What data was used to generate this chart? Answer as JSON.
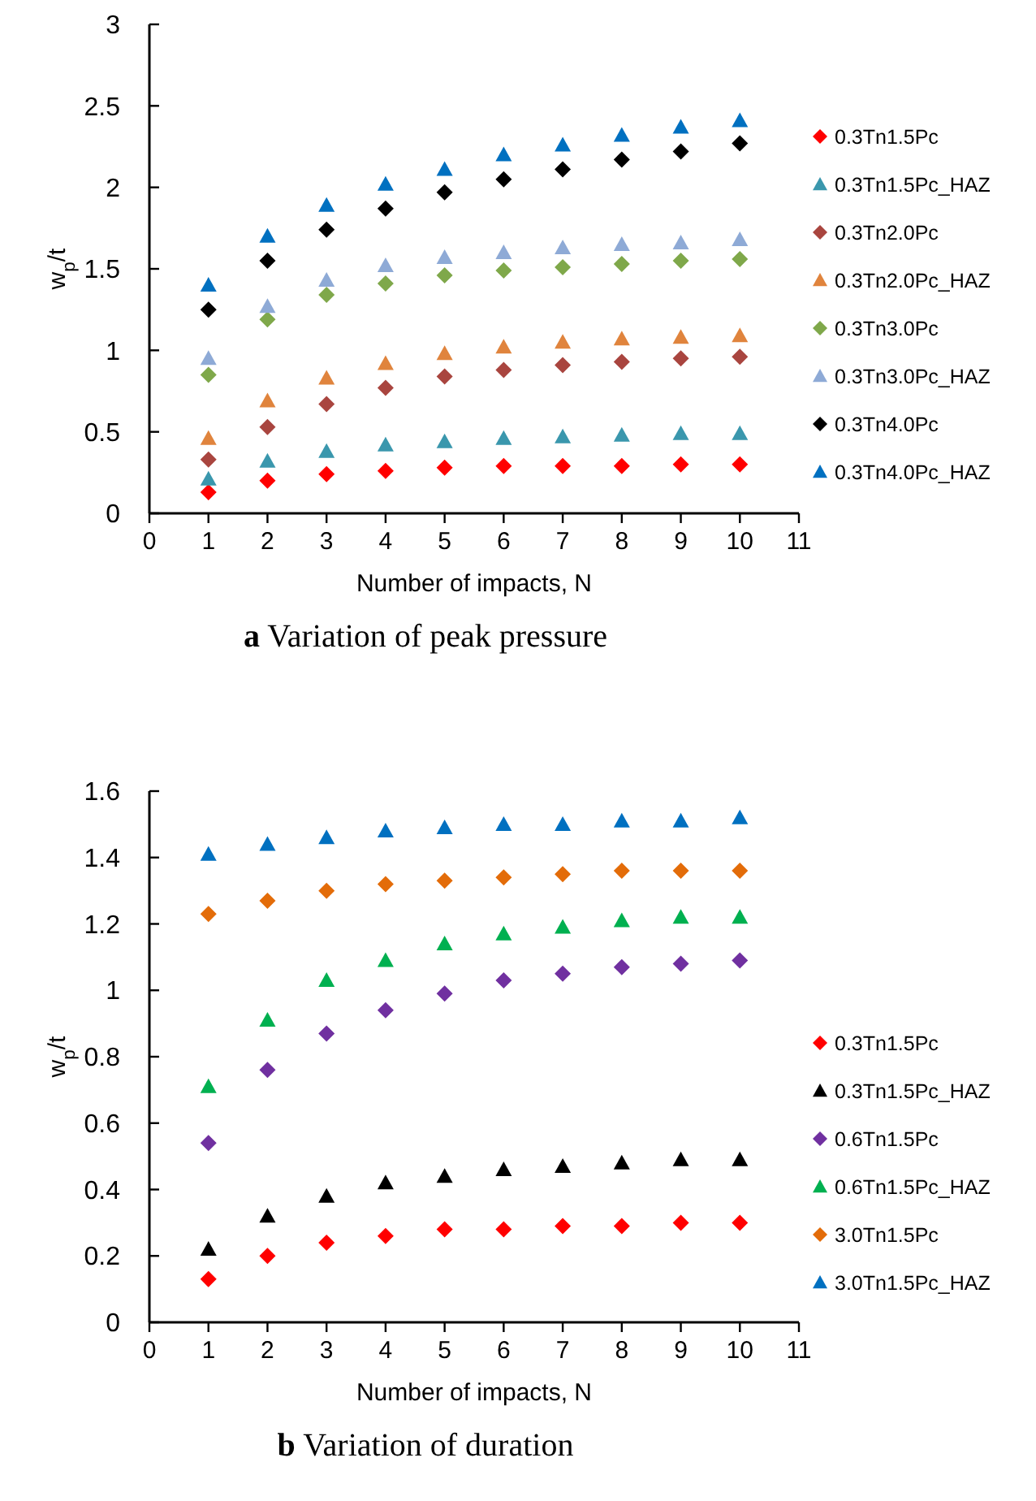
{
  "chart_data": [
    {
      "type": "scatter",
      "title": "a  Variation of peak pressure",
      "xlabel": "Number of impacts, N",
      "ylabel": "w$_{p}$/t",
      "x": [
        1,
        2,
        3,
        4,
        5,
        6,
        7,
        8,
        9,
        10
      ],
      "xlim": [
        0,
        11
      ],
      "xticks": [
        0,
        1,
        2,
        3,
        4,
        5,
        6,
        7,
        8,
        9,
        10,
        11
      ],
      "ylim": [
        0,
        3
      ],
      "yticks": [
        0,
        0.5,
        1,
        1.5,
        2,
        2.5,
        3
      ],
      "grid": false,
      "legend": "right",
      "series": [
        {
          "name": "0.3Tn1.5Pc",
          "color": "#ff0000",
          "marker": "diamond",
          "values": [
            0.13,
            0.2,
            0.24,
            0.26,
            0.28,
            0.29,
            0.29,
            0.29,
            0.3,
            0.3
          ]
        },
        {
          "name": "0.3Tn1.5Pc_HAZ",
          "color": "#3a97ad",
          "marker": "triangle",
          "values": [
            0.21,
            0.32,
            0.38,
            0.42,
            0.44,
            0.46,
            0.47,
            0.48,
            0.49,
            0.49
          ]
        },
        {
          "name": "0.3Tn2.0Pc",
          "color": "#a9453f",
          "marker": "diamond",
          "values": [
            0.33,
            0.53,
            0.67,
            0.77,
            0.84,
            0.88,
            0.91,
            0.93,
            0.95,
            0.96
          ]
        },
        {
          "name": "0.3Tn2.0Pc_HAZ",
          "color": "#e0843d",
          "marker": "triangle",
          "values": [
            0.46,
            0.69,
            0.83,
            0.92,
            0.98,
            1.02,
            1.05,
            1.07,
            1.08,
            1.09
          ]
        },
        {
          "name": "0.3Tn3.0Pc",
          "color": "#7fa84a",
          "marker": "diamond",
          "values": [
            0.85,
            1.19,
            1.34,
            1.41,
            1.46,
            1.49,
            1.51,
            1.53,
            1.55,
            1.56
          ]
        },
        {
          "name": "0.3Tn3.0Pc_HAZ",
          "color": "#8eaad6",
          "marker": "triangle",
          "values": [
            0.95,
            1.27,
            1.43,
            1.52,
            1.57,
            1.6,
            1.63,
            1.65,
            1.66,
            1.68
          ]
        },
        {
          "name": "0.3Tn4.0Pc",
          "color": "#000000",
          "marker": "diamond",
          "values": [
            1.25,
            1.55,
            1.74,
            1.87,
            1.97,
            2.05,
            2.11,
            2.17,
            2.22,
            2.27
          ]
        },
        {
          "name": "0.3Tn4.0Pc_HAZ",
          "color": "#0070c0",
          "marker": "triangle",
          "values": [
            1.4,
            1.7,
            1.89,
            2.02,
            2.11,
            2.2,
            2.26,
            2.32,
            2.37,
            2.41
          ]
        }
      ]
    },
    {
      "type": "scatter",
      "title": "b  Variation of duration",
      "xlabel": "Number of impacts, N",
      "ylabel": "w$_{p}$/t",
      "x": [
        1,
        2,
        3,
        4,
        5,
        6,
        7,
        8,
        9,
        10
      ],
      "xlim": [
        0,
        11
      ],
      "xticks": [
        0,
        1,
        2,
        3,
        4,
        5,
        6,
        7,
        8,
        9,
        10,
        11
      ],
      "ylim": [
        0,
        1.6
      ],
      "yticks": [
        0,
        0.2,
        0.4,
        0.6,
        0.8,
        1,
        1.2,
        1.4,
        1.6
      ],
      "grid": false,
      "legend": "right",
      "series": [
        {
          "name": "0.3Tn1.5Pc",
          "color": "#ff0000",
          "marker": "diamond",
          "values": [
            0.13,
            0.2,
            0.24,
            0.26,
            0.28,
            0.28,
            0.29,
            0.29,
            0.3,
            0.3
          ]
        },
        {
          "name": "0.3Tn1.5Pc_HAZ",
          "color": "#000000",
          "marker": "triangle",
          "values": [
            0.22,
            0.32,
            0.38,
            0.42,
            0.44,
            0.46,
            0.47,
            0.48,
            0.49,
            0.49
          ]
        },
        {
          "name": "0.6Tn1.5Pc",
          "color": "#7030a0",
          "marker": "diamond",
          "values": [
            0.54,
            0.76,
            0.87,
            0.94,
            0.99,
            1.03,
            1.05,
            1.07,
            1.08,
            1.09
          ]
        },
        {
          "name": "0.6Tn1.5Pc_HAZ",
          "color": "#00b050",
          "marker": "triangle",
          "values": [
            0.71,
            0.91,
            1.03,
            1.09,
            1.14,
            1.17,
            1.19,
            1.21,
            1.22,
            1.22
          ]
        },
        {
          "name": "3.0Tn1.5Pc",
          "color": "#e36c09",
          "marker": "diamond",
          "values": [
            1.23,
            1.27,
            1.3,
            1.32,
            1.33,
            1.34,
            1.35,
            1.36,
            1.36,
            1.36
          ]
        },
        {
          "name": "3.0Tn1.5Pc_HAZ",
          "color": "#0070c0",
          "marker": "triangle",
          "values": [
            1.41,
            1.44,
            1.46,
            1.48,
            1.49,
            1.5,
            1.5,
            1.51,
            1.51,
            1.52
          ]
        }
      ]
    }
  ]
}
